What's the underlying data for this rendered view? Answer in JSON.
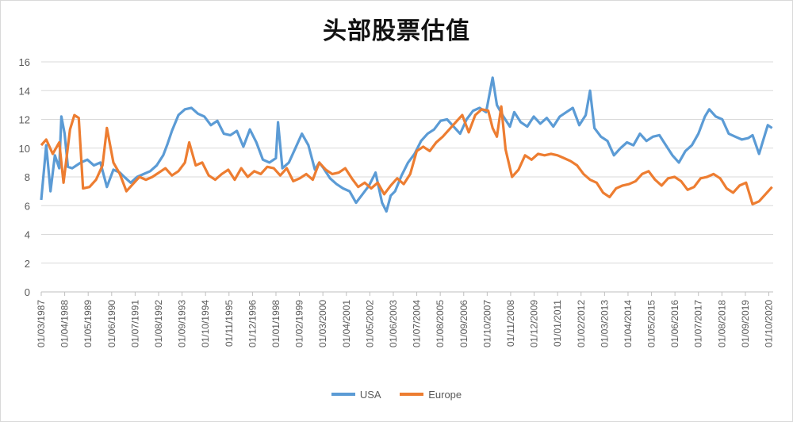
{
  "chart_data": {
    "type": "line",
    "title": "头部股票估值",
    "xlabel": "",
    "ylabel": "",
    "ylim": [
      0,
      16
    ],
    "yticks": [
      0,
      2,
      4,
      6,
      8,
      10,
      12,
      14,
      16
    ],
    "grid": true,
    "legend_position": "bottom",
    "xtick_labels": [
      "01/03/1987",
      "01/04/1988",
      "01/05/1989",
      "01/06/1990",
      "01/07/1991",
      "01/08/1992",
      "01/09/1993",
      "01/10/1994",
      "01/11/1995",
      "01/12/1996",
      "01/01/1998",
      "01/02/1999",
      "01/03/2000",
      "01/04/2001",
      "01/05/2002",
      "01/06/2003",
      "01/07/2004",
      "01/08/2005",
      "01/09/2006",
      "01/10/2007",
      "01/11/2008",
      "01/12/2009",
      "01/01/2011",
      "01/02/2012",
      "01/03/2013",
      "01/04/2014",
      "01/05/2015",
      "01/06/2016",
      "01/07/2017",
      "01/08/2018",
      "01/09/2019",
      "01/10/2020"
    ],
    "x_start": "1987-03",
    "series": [
      {
        "name": "USA",
        "color": "#5b9bd5",
        "x": [
          1987.17,
          1987.4,
          1987.6,
          1987.8,
          1988.0,
          1988.1,
          1988.25,
          1988.4,
          1988.6,
          1988.8,
          1989.0,
          1989.3,
          1989.6,
          1989.9,
          1990.2,
          1990.5,
          1990.8,
          1991.0,
          1991.3,
          1991.6,
          1991.9,
          1992.2,
          1992.5,
          1992.8,
          1993.0,
          1993.2,
          1993.5,
          1993.8,
          1994.1,
          1994.4,
          1994.7,
          1995.0,
          1995.3,
          1995.6,
          1995.9,
          1996.2,
          1996.5,
          1996.8,
          1997.1,
          1997.4,
          1997.7,
          1998.0,
          1998.1,
          1998.3,
          1998.6,
          1998.9,
          1999.2,
          1999.5,
          1999.8,
          2000.0,
          2000.2,
          2000.5,
          2000.8,
          2001.1,
          2001.4,
          2001.7,
          2002.0,
          2002.3,
          2002.6,
          2002.9,
          2003.1,
          2003.3,
          2003.5,
          2003.8,
          2004.1,
          2004.4,
          2004.7,
          2005.0,
          2005.3,
          2005.6,
          2005.9,
          2006.2,
          2006.5,
          2006.8,
          2007.1,
          2007.4,
          2007.7,
          2008.0,
          2008.2,
          2008.5,
          2008.8,
          2009.0,
          2009.3,
          2009.6,
          2009.9,
          2010.2,
          2010.5,
          2010.8,
          2011.1,
          2011.4,
          2011.7,
          2012.0,
          2012.3,
          2012.5,
          2012.7,
          2013.0,
          2013.3,
          2013.6,
          2013.9,
          2014.2,
          2014.5,
          2014.8,
          2015.1,
          2015.4,
          2015.7,
          2016.0,
          2016.3,
          2016.6,
          2016.9,
          2017.2,
          2017.5,
          2017.8,
          2018.0,
          2018.3,
          2018.6,
          2018.9,
          2019.2,
          2019.5,
          2019.8,
          2020.0,
          2020.3,
          2020.5,
          2020.7,
          2020.9
        ],
        "values": [
          6.4,
          10.2,
          7.0,
          9.5,
          8.6,
          12.2,
          11.0,
          8.7,
          8.6,
          8.8,
          9.0,
          9.2,
          8.8,
          9.0,
          7.3,
          8.5,
          8.3,
          8.0,
          7.6,
          8.0,
          8.2,
          8.4,
          8.8,
          9.5,
          10.3,
          11.2,
          12.3,
          12.7,
          12.8,
          12.4,
          12.2,
          11.6,
          11.9,
          11.0,
          10.9,
          11.2,
          10.1,
          11.3,
          10.4,
          9.2,
          9.0,
          9.3,
          11.8,
          8.6,
          9.0,
          10.0,
          11.0,
          10.2,
          8.5,
          9.0,
          8.6,
          7.9,
          7.5,
          7.2,
          7.0,
          6.2,
          6.8,
          7.4,
          8.3,
          6.2,
          5.6,
          6.7,
          7.0,
          8.1,
          9.0,
          9.6,
          10.5,
          11.0,
          11.3,
          11.9,
          12.0,
          11.5,
          11.0,
          12.0,
          12.6,
          12.8,
          12.5,
          14.9,
          13.0,
          12.2,
          11.5,
          12.5,
          11.8,
          11.5,
          12.2,
          11.7,
          12.1,
          11.5,
          12.2,
          12.5,
          12.8,
          11.6,
          12.3,
          14.0,
          11.4,
          10.8,
          10.5,
          9.5,
          10.0,
          10.4,
          10.2,
          11.0,
          10.5,
          10.8,
          10.9,
          10.2,
          9.5,
          9.0,
          9.8,
          10.2,
          11.0,
          12.2,
          12.7,
          12.2,
          12.0,
          11.0,
          10.8,
          10.6,
          10.7,
          10.9,
          9.6,
          10.6,
          11.6,
          11.4
        ]
      },
      {
        "name": "Europe",
        "color": "#ed7d31",
        "x": [
          1987.17,
          1987.4,
          1987.7,
          1988.0,
          1988.2,
          1988.5,
          1988.7,
          1988.9,
          1989.1,
          1989.4,
          1989.7,
          1990.0,
          1990.2,
          1990.5,
          1990.8,
          1991.1,
          1991.4,
          1991.7,
          1992.0,
          1992.3,
          1992.6,
          1992.9,
          1993.2,
          1993.5,
          1993.8,
          1994.0,
          1994.3,
          1994.6,
          1994.9,
          1995.2,
          1995.5,
          1995.8,
          1996.1,
          1996.4,
          1996.7,
          1997.0,
          1997.3,
          1997.6,
          1997.9,
          1998.2,
          1998.5,
          1998.8,
          1999.1,
          1999.4,
          1999.7,
          2000.0,
          2000.3,
          2000.6,
          2000.9,
          2001.2,
          2001.5,
          2001.8,
          2002.1,
          2002.4,
          2002.7,
          2003.0,
          2003.3,
          2003.6,
          2003.9,
          2004.2,
          2004.5,
          2004.8,
          2005.1,
          2005.4,
          2005.7,
          2006.0,
          2006.3,
          2006.6,
          2006.9,
          2007.2,
          2007.5,
          2007.8,
          2008.0,
          2008.2,
          2008.4,
          2008.6,
          2008.9,
          2009.2,
          2009.5,
          2009.8,
          2010.1,
          2010.4,
          2010.7,
          2011.0,
          2011.3,
          2011.6,
          2011.9,
          2012.2,
          2012.5,
          2012.8,
          2013.1,
          2013.4,
          2013.7,
          2014.0,
          2014.3,
          2014.6,
          2014.9,
          2015.2,
          2015.5,
          2015.8,
          2016.1,
          2016.4,
          2016.7,
          2017.0,
          2017.3,
          2017.6,
          2017.9,
          2018.2,
          2018.5,
          2018.8,
          2019.1,
          2019.4,
          2019.7,
          2020.0,
          2020.3,
          2020.6,
          2020.9
        ],
        "values": [
          10.2,
          10.6,
          9.6,
          10.4,
          7.6,
          11.3,
          12.3,
          12.1,
          7.2,
          7.3,
          7.8,
          8.8,
          11.4,
          9.0,
          8.2,
          7.0,
          7.5,
          8.0,
          7.8,
          8.0,
          8.3,
          8.6,
          8.1,
          8.4,
          9.0,
          10.4,
          8.8,
          9.0,
          8.1,
          7.8,
          8.2,
          8.5,
          7.8,
          8.6,
          8.0,
          8.4,
          8.2,
          8.7,
          8.6,
          8.1,
          8.6,
          7.7,
          7.9,
          8.2,
          7.8,
          9.0,
          8.5,
          8.2,
          8.3,
          8.6,
          7.9,
          7.3,
          7.6,
          7.2,
          7.6,
          6.8,
          7.4,
          7.9,
          7.5,
          8.2,
          9.8,
          10.1,
          9.8,
          10.4,
          10.8,
          11.3,
          11.8,
          12.3,
          11.1,
          12.3,
          12.7,
          12.6,
          11.4,
          10.8,
          12.9,
          9.9,
          8.0,
          8.5,
          9.5,
          9.2,
          9.6,
          9.5,
          9.6,
          9.5,
          9.3,
          9.1,
          8.8,
          8.2,
          7.8,
          7.6,
          6.9,
          6.6,
          7.2,
          7.4,
          7.5,
          7.7,
          8.2,
          8.4,
          7.8,
          7.4,
          7.9,
          8.0,
          7.7,
          7.1,
          7.3,
          7.9,
          8.0,
          8.2,
          7.9,
          7.2,
          6.9,
          7.4,
          7.6,
          6.1,
          6.3,
          6.8,
          7.3
        ]
      }
    ]
  }
}
